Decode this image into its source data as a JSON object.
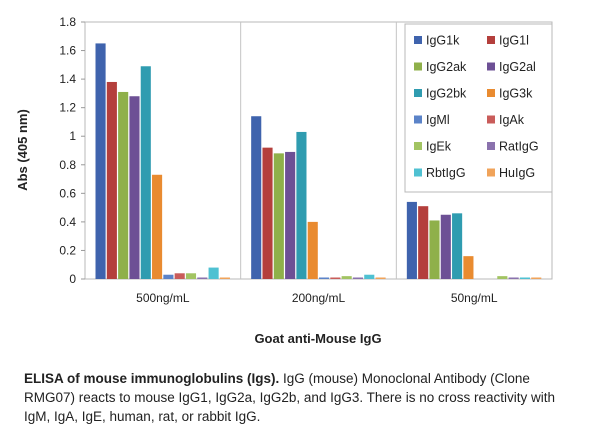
{
  "chart_data": {
    "type": "bar",
    "ylabel": "Abs (405 nm)",
    "xlabel": "Goat anti-Mouse IgG",
    "ylim": [
      0,
      1.8
    ],
    "yticks": [
      "0",
      "0.2",
      "0.4",
      "0.6",
      "0.8",
      "1",
      "1.2",
      "1.4",
      "1.6",
      "1.8"
    ],
    "categories": [
      "500ng/mL",
      "200ng/mL",
      "50ng/mL"
    ],
    "grid": "vertical separators between groups",
    "legend_position": "top-right",
    "series": [
      {
        "name": "IgG1k",
        "color": "#3f63ad",
        "values": [
          1.65,
          1.14,
          0.54
        ]
      },
      {
        "name": "IgG1l",
        "color": "#b43f3c",
        "values": [
          1.38,
          0.92,
          0.51
        ]
      },
      {
        "name": "IgG2ak",
        "color": "#8fb04a",
        "values": [
          1.31,
          0.88,
          0.41
        ]
      },
      {
        "name": "IgG2al",
        "color": "#6d5095",
        "values": [
          1.28,
          0.89,
          0.45
        ]
      },
      {
        "name": "IgG2bk",
        "color": "#2f9cb0",
        "values": [
          1.49,
          1.03,
          0.46
        ]
      },
      {
        "name": "IgG3k",
        "color": "#e98b30",
        "values": [
          0.73,
          0.4,
          0.16
        ]
      },
      {
        "name": "IgMl",
        "color": "#5b83c8",
        "values": [
          0.03,
          0.01,
          0.0
        ]
      },
      {
        "name": "IgAk",
        "color": "#c95c5a",
        "values": [
          0.04,
          0.01,
          0.0
        ]
      },
      {
        "name": "IgEk",
        "color": "#a2c462",
        "values": [
          0.04,
          0.02,
          0.02
        ]
      },
      {
        "name": "RatIgG",
        "color": "#8a72ad",
        "values": [
          0.01,
          0.01,
          0.01
        ]
      },
      {
        "name": "RbtIgG",
        "color": "#4fc1d2",
        "values": [
          0.08,
          0.03,
          0.01
        ]
      },
      {
        "name": "HuIgG",
        "color": "#f0a35a",
        "values": [
          0.01,
          0.01,
          0.01
        ]
      }
    ]
  },
  "caption": {
    "bold": "ELISA of mouse immunoglobulins (Igs).",
    "text": " IgG (mouse) Monoclonal Antibody (Clone RMG07) reacts to mouse IgG1, IgG2a, IgG2b, and IgG3. There is no cross reactivity with IgM, IgA, IgE, human, rat, or rabbit IgG."
  }
}
